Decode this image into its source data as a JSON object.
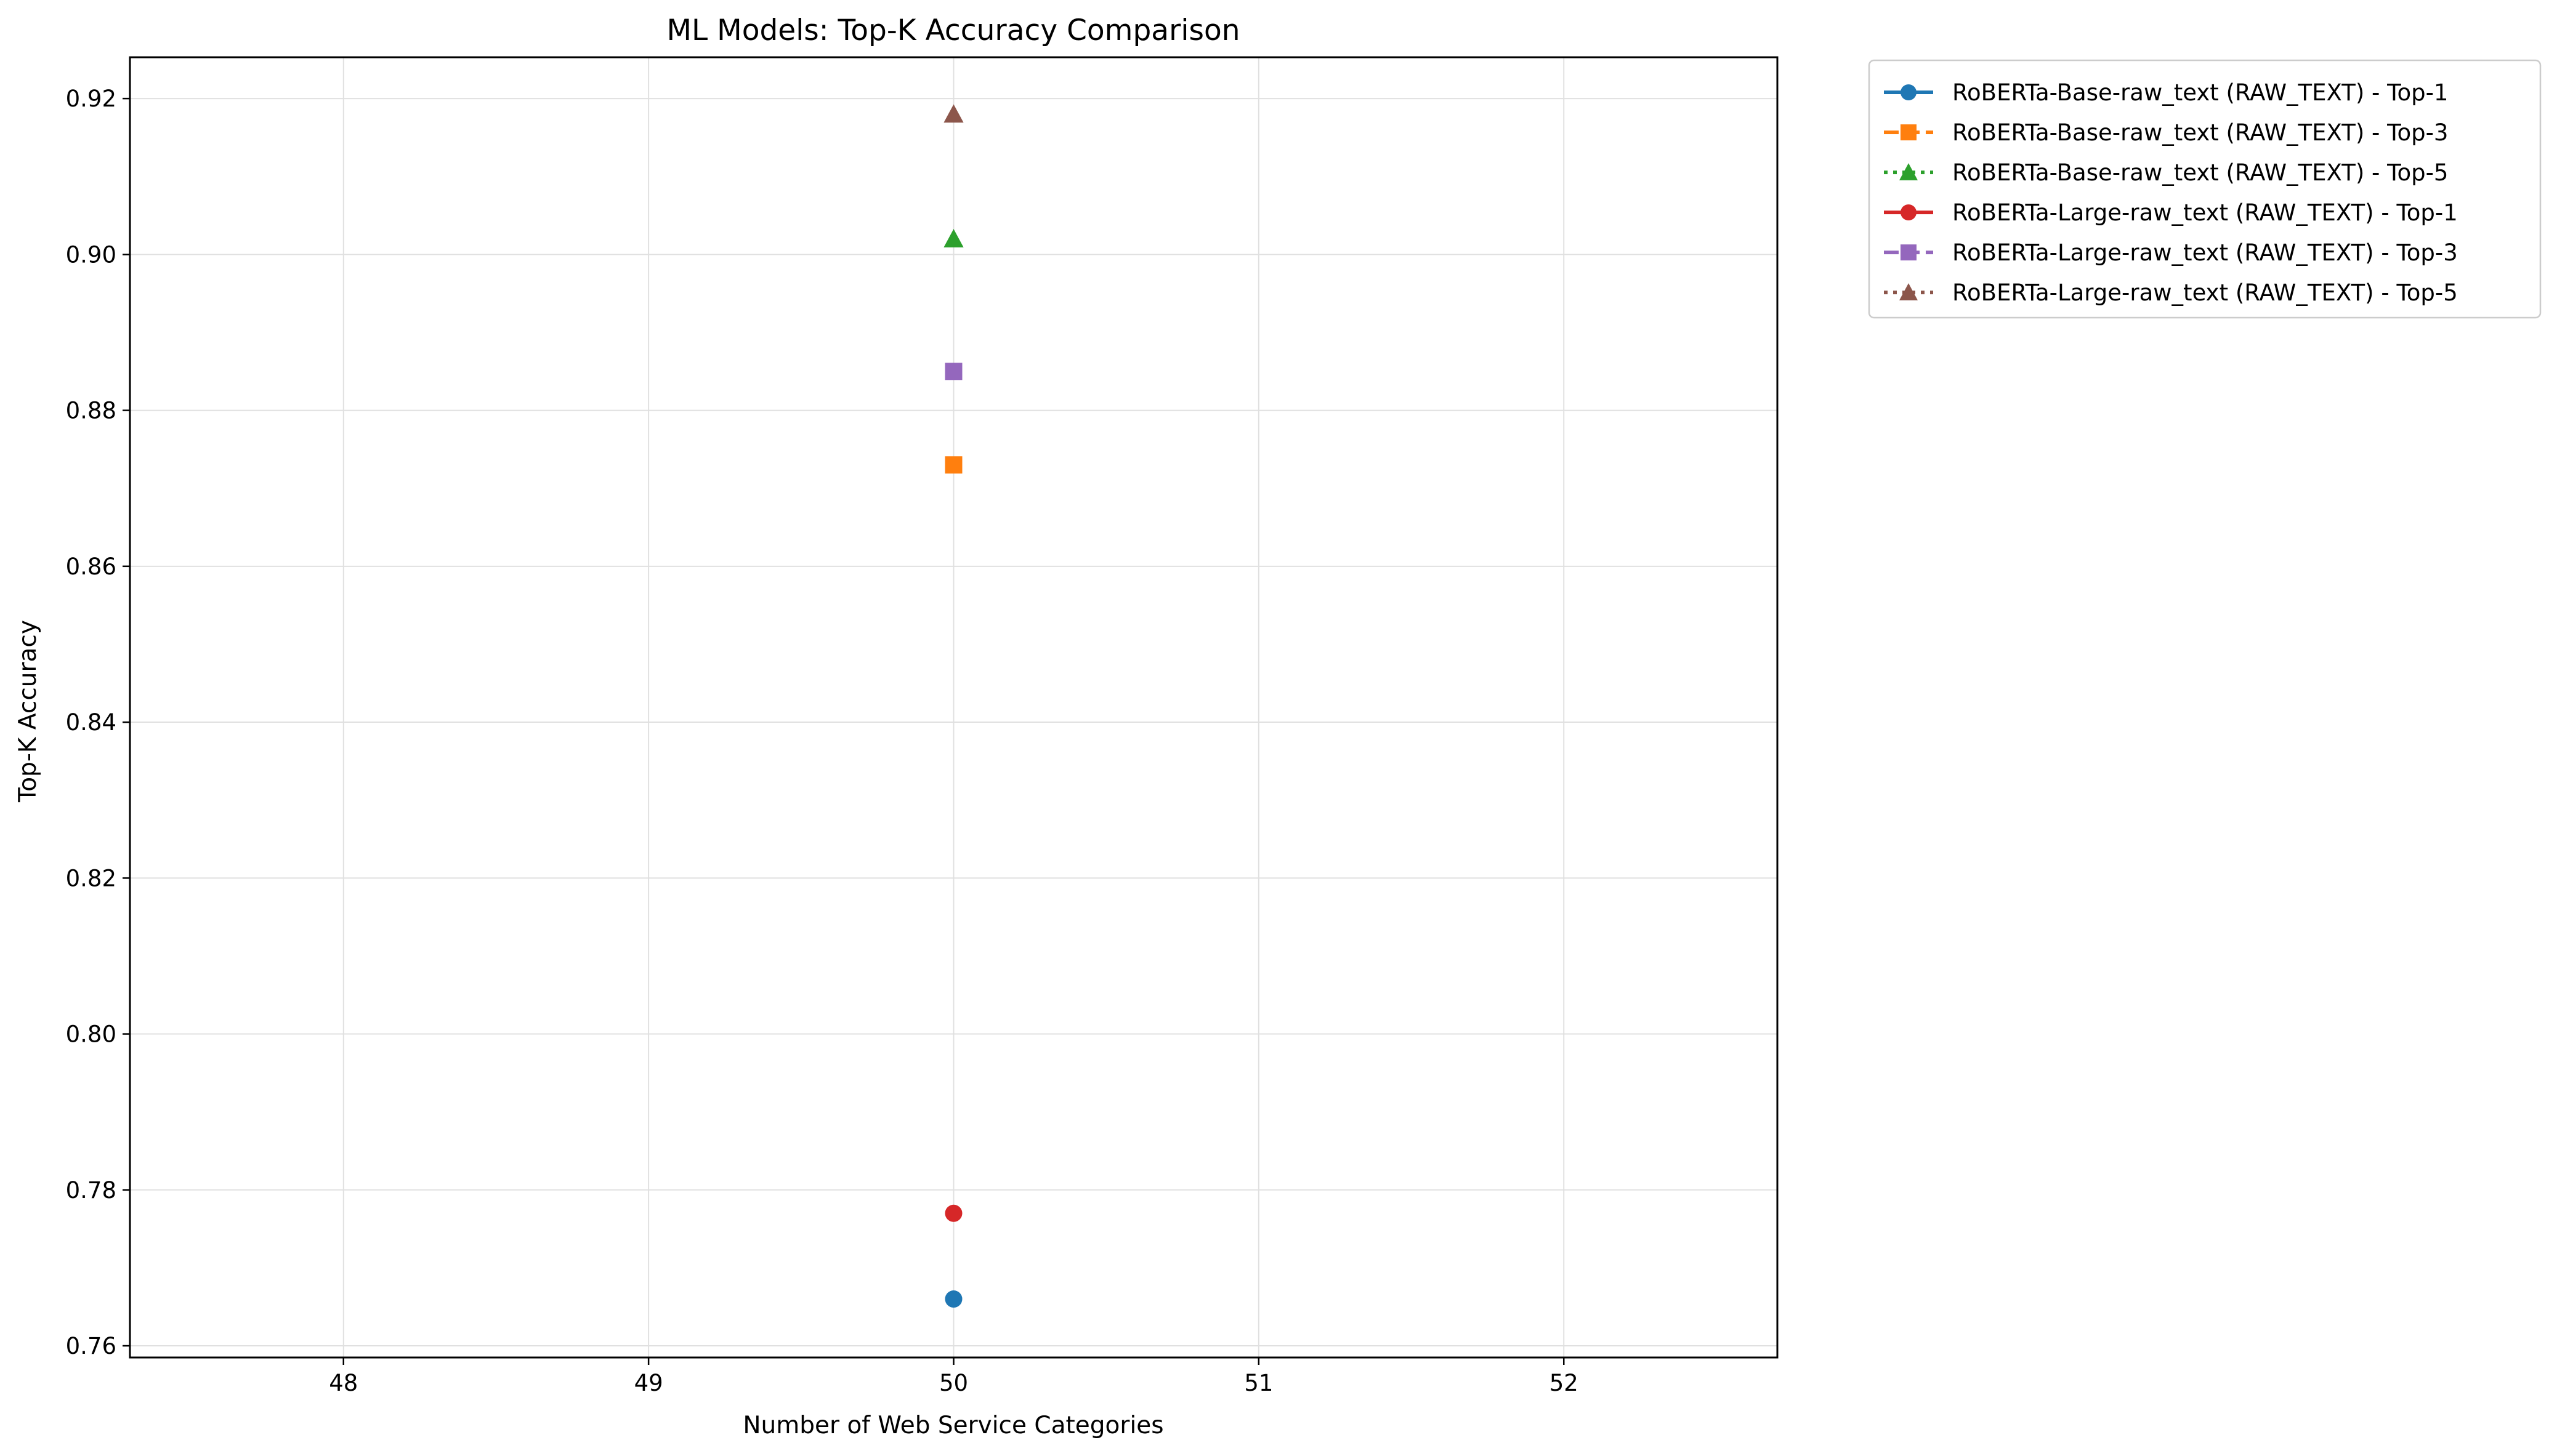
{
  "chart_data": {
    "type": "line",
    "title": "ML Models: Top-K Accuracy Comparison",
    "xlabel": "Number of Web Service Categories",
    "ylabel": "Top-K Accuracy",
    "xlim": [
      47.3,
      52.7
    ],
    "ylim": [
      0.7585,
      0.9253
    ],
    "x_ticks": [
      48,
      49,
      50,
      51,
      52
    ],
    "x_tick_labels": [
      "48",
      "49",
      "50",
      "51",
      "52"
    ],
    "y_ticks": [
      0.76,
      0.78,
      0.8,
      0.82,
      0.84,
      0.86,
      0.88,
      0.9,
      0.92
    ],
    "y_tick_labels": [
      "0.76",
      "0.78",
      "0.80",
      "0.82",
      "0.84",
      "0.86",
      "0.88",
      "0.90",
      "0.92"
    ],
    "grid": true,
    "legend_position": "outside top-right",
    "series": [
      {
        "name": "RoBERTa-Base-raw_text (RAW_TEXT) - Top-1",
        "x": [
          50
        ],
        "values": [
          0.766
        ],
        "color": "#1f77b4",
        "marker": "circle",
        "line_style": "solid"
      },
      {
        "name": "RoBERTa-Base-raw_text (RAW_TEXT) - Top-3",
        "x": [
          50
        ],
        "values": [
          0.873
        ],
        "color": "#ff7f0e",
        "marker": "square",
        "line_style": "dashed"
      },
      {
        "name": "RoBERTa-Base-raw_text (RAW_TEXT) - Top-5",
        "x": [
          50
        ],
        "values": [
          0.902
        ],
        "color": "#2ca02c",
        "marker": "triangle",
        "line_style": "dotted"
      },
      {
        "name": "RoBERTa-Large-raw_text (RAW_TEXT) - Top-1",
        "x": [
          50
        ],
        "values": [
          0.777
        ],
        "color": "#d62728",
        "marker": "circle",
        "line_style": "solid"
      },
      {
        "name": "RoBERTa-Large-raw_text (RAW_TEXT) - Top-3",
        "x": [
          50
        ],
        "values": [
          0.885
        ],
        "color": "#9467bd",
        "marker": "square",
        "line_style": "dashed"
      },
      {
        "name": "RoBERTa-Large-raw_text (RAW_TEXT) - Top-5",
        "x": [
          50
        ],
        "values": [
          0.918
        ],
        "color": "#8c564b",
        "marker": "triangle",
        "line_style": "dotted"
      }
    ]
  }
}
